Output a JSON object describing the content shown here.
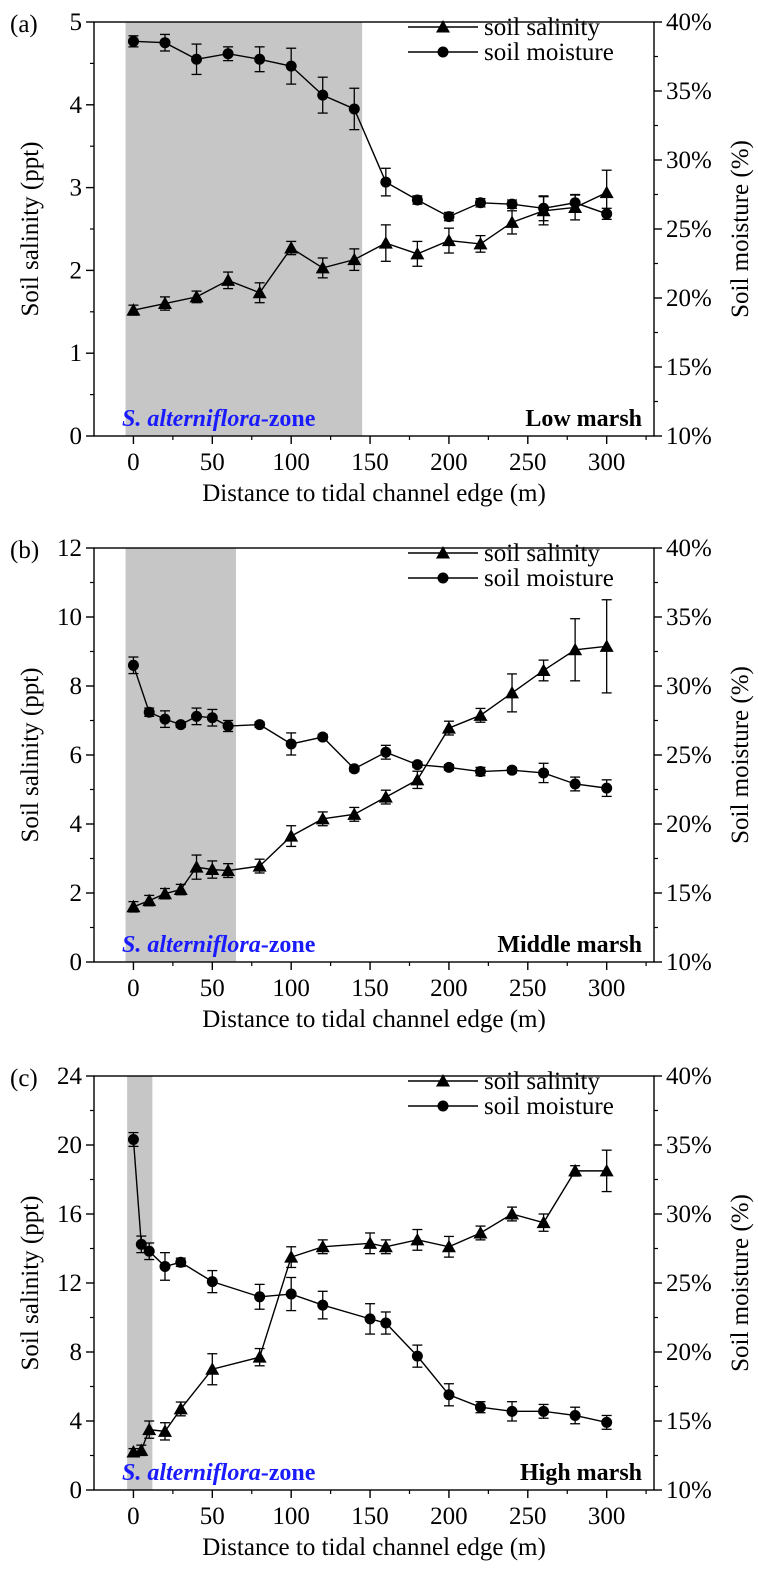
{
  "colors": {
    "shade": "#c6c6c6",
    "series": "#000000",
    "zone_label": "#1a1aff",
    "marsh_label": "#e3141c"
  },
  "chart_data": [
    {
      "type": "line",
      "panel_label": "(a)",
      "xlabel": "Distance to tidal channel edge (m)",
      "ylabel": "Soil salinity (ppt)",
      "y2label": "Soil moisture (%)",
      "xlim": [
        -25,
        330
      ],
      "xticks": [
        0,
        50,
        100,
        150,
        200,
        250,
        300
      ],
      "xtick_labels": [
        "0",
        "50",
        "100",
        "150",
        "200",
        "250",
        "300"
      ],
      "ylim": [
        0,
        5
      ],
      "yticks": [
        0,
        1,
        2,
        3,
        4,
        5
      ],
      "ytick_labels": [
        "0",
        "1",
        "2",
        "3",
        "4",
        "5"
      ],
      "y2lim": [
        10,
        40
      ],
      "y2ticks": [
        10,
        15,
        20,
        25,
        30,
        35,
        40
      ],
      "y2tick_labels": [
        "10%",
        "15%",
        "20%",
        "25%",
        "30%",
        "35%",
        "40%"
      ],
      "shaded_region": [
        -5,
        145
      ],
      "zone_label_main": "S. alterniflora",
      "zone_label_suffix": "-zone",
      "marsh_label": "Low marsh",
      "legend": {
        "position": "top-right",
        "entries": [
          "soil salinity",
          "soil moisture"
        ]
      },
      "series": [
        {
          "name": "soil salinity",
          "marker": "triangle",
          "axis": "left",
          "x": [
            0,
            20,
            40,
            60,
            80,
            100,
            120,
            140,
            160,
            180,
            200,
            220,
            240,
            260,
            280,
            300
          ],
          "y": [
            1.52,
            1.6,
            1.68,
            1.88,
            1.73,
            2.27,
            2.03,
            2.13,
            2.33,
            2.2,
            2.36,
            2.32,
            2.58,
            2.72,
            2.76,
            2.94
          ],
          "err": [
            0.06,
            0.08,
            0.07,
            0.1,
            0.12,
            0.08,
            0.12,
            0.13,
            0.22,
            0.15,
            0.15,
            0.1,
            0.14,
            0.17,
            0.15,
            0.27
          ]
        },
        {
          "name": "soil moisture",
          "marker": "circle",
          "axis": "right",
          "x": [
            0,
            20,
            40,
            60,
            80,
            100,
            120,
            140,
            160,
            180,
            200,
            220,
            240,
            260,
            280,
            300
          ],
          "y": [
            38.6,
            38.5,
            37.3,
            37.7,
            37.3,
            36.8,
            34.7,
            33.7,
            28.4,
            27.1,
            25.9,
            26.9,
            26.8,
            26.5,
            26.9,
            26.1
          ],
          "err": [
            0.4,
            0.6,
            1.1,
            0.5,
            0.9,
            1.3,
            1.3,
            1.5,
            1.0,
            0.3,
            0.3,
            0.3,
            0.3,
            0.9,
            0.6,
            0.4
          ]
        }
      ]
    },
    {
      "type": "line",
      "panel_label": "(b)",
      "xlabel": "Distance to tidal channel edge (m)",
      "ylabel": "Soil salinity (ppt)",
      "y2label": "Soil moisture (%)",
      "xlim": [
        -25,
        330
      ],
      "xticks": [
        0,
        50,
        100,
        150,
        200,
        250,
        300
      ],
      "xtick_labels": [
        "0",
        "50",
        "100",
        "150",
        "200",
        "250",
        "300"
      ],
      "ylim": [
        0,
        12
      ],
      "yticks": [
        0,
        2,
        4,
        6,
        8,
        10,
        12
      ],
      "ytick_labels": [
        "0",
        "2",
        "4",
        "6",
        "8",
        "10",
        "12"
      ],
      "y2lim": [
        10,
        40
      ],
      "y2ticks": [
        10,
        15,
        20,
        25,
        30,
        35,
        40
      ],
      "y2tick_labels": [
        "10%",
        "15%",
        "20%",
        "25%",
        "30%",
        "35%",
        "40%"
      ],
      "shaded_region": [
        -5,
        65
      ],
      "zone_label_main": "S. alterniflora",
      "zone_label_suffix": "-zone",
      "marsh_label": "Middle marsh",
      "legend": {
        "position": "top-right",
        "entries": [
          "soil salinity",
          "soil moisture"
        ]
      },
      "series": [
        {
          "name": "soil salinity",
          "marker": "triangle",
          "axis": "left",
          "x": [
            0,
            10,
            20,
            30,
            40,
            50,
            60,
            80,
            100,
            120,
            140,
            160,
            180,
            200,
            220,
            240,
            260,
            280,
            300
          ],
          "y": [
            1.6,
            1.78,
            1.98,
            2.1,
            2.75,
            2.68,
            2.65,
            2.78,
            3.65,
            4.15,
            4.28,
            4.78,
            5.28,
            6.78,
            7.15,
            7.8,
            8.45,
            9.05,
            9.15
          ],
          "err": [
            0.15,
            0.15,
            0.15,
            0.15,
            0.35,
            0.25,
            0.2,
            0.2,
            0.3,
            0.2,
            0.2,
            0.2,
            0.25,
            0.2,
            0.2,
            0.55,
            0.3,
            0.9,
            1.35
          ]
        },
        {
          "name": "soil moisture",
          "marker": "circle",
          "axis": "right",
          "x": [
            0,
            10,
            20,
            30,
            40,
            50,
            60,
            80,
            100,
            120,
            140,
            160,
            180,
            200,
            220,
            240,
            260,
            280,
            300
          ],
          "y": [
            31.5,
            28.1,
            27.6,
            27.2,
            27.8,
            27.7,
            27.1,
            27.2,
            25.8,
            26.3,
            24.0,
            25.2,
            24.3,
            24.1,
            23.8,
            23.9,
            23.7,
            22.9,
            22.6
          ],
          "err": [
            0.6,
            0.3,
            0.6,
            0.2,
            0.6,
            0.6,
            0.4,
            0.2,
            0.8,
            0.2,
            0.2,
            0.5,
            0.2,
            0.2,
            0.3,
            0.2,
            0.7,
            0.5,
            0.6
          ]
        }
      ]
    },
    {
      "type": "line",
      "panel_label": "(c)",
      "xlabel": "Distance to tidal channel edge (m)",
      "ylabel": "Soil salinity (ppt)",
      "y2label": "Soil moisture (%)",
      "xlim": [
        -25,
        330
      ],
      "xticks": [
        0,
        50,
        100,
        150,
        200,
        250,
        300
      ],
      "xtick_labels": [
        "0",
        "50",
        "100",
        "150",
        "200",
        "250",
        "300"
      ],
      "ylim": [
        0,
        24
      ],
      "yticks": [
        0,
        4,
        8,
        12,
        16,
        20,
        24
      ],
      "ytick_labels": [
        "0",
        "4",
        "8",
        "12",
        "16",
        "20",
        "24"
      ],
      "y2lim": [
        10,
        40
      ],
      "y2ticks": [
        10,
        15,
        20,
        25,
        30,
        35,
        40
      ],
      "y2tick_labels": [
        "10%",
        "15%",
        "20%",
        "25%",
        "30%",
        "35%",
        "40%"
      ],
      "shaded_region": [
        -4,
        12
      ],
      "zone_label_main": "S. alterniflora",
      "zone_label_suffix": "-zone",
      "marsh_label": "High marsh",
      "legend": {
        "position": "top-right",
        "entries": [
          "soil salinity",
          "soil moisture"
        ]
      },
      "series": [
        {
          "name": "soil salinity",
          "marker": "triangle",
          "axis": "left",
          "x": [
            0,
            5,
            10,
            20,
            30,
            50,
            80,
            100,
            120,
            150,
            160,
            180,
            200,
            220,
            240,
            260,
            280,
            300
          ],
          "y": [
            2.2,
            2.3,
            3.5,
            3.4,
            4.7,
            7.0,
            7.7,
            13.5,
            14.1,
            14.3,
            14.1,
            14.5,
            14.1,
            14.9,
            16.0,
            15.5,
            18.5,
            18.5
          ],
          "err": [
            0.2,
            0.3,
            0.5,
            0.5,
            0.4,
            0.9,
            0.5,
            0.6,
            0.4,
            0.6,
            0.4,
            0.6,
            0.6,
            0.4,
            0.4,
            0.5,
            0.3,
            1.2
          ]
        },
        {
          "name": "soil moisture",
          "marker": "circle",
          "axis": "right",
          "x": [
            0,
            5,
            10,
            20,
            30,
            50,
            80,
            100,
            120,
            150,
            160,
            180,
            200,
            220,
            240,
            260,
            280,
            300
          ],
          "y": [
            35.4,
            27.8,
            27.3,
            26.2,
            26.5,
            25.1,
            24.0,
            24.2,
            23.4,
            22.4,
            22.1,
            19.7,
            16.9,
            16.0,
            15.7,
            15.7,
            15.4,
            14.9
          ],
          "err": [
            0.5,
            0.6,
            0.6,
            1.0,
            0.3,
            0.8,
            0.9,
            1.2,
            1.0,
            1.1,
            0.8,
            0.8,
            0.8,
            0.4,
            0.7,
            0.5,
            0.6,
            0.5
          ]
        }
      ]
    }
  ]
}
